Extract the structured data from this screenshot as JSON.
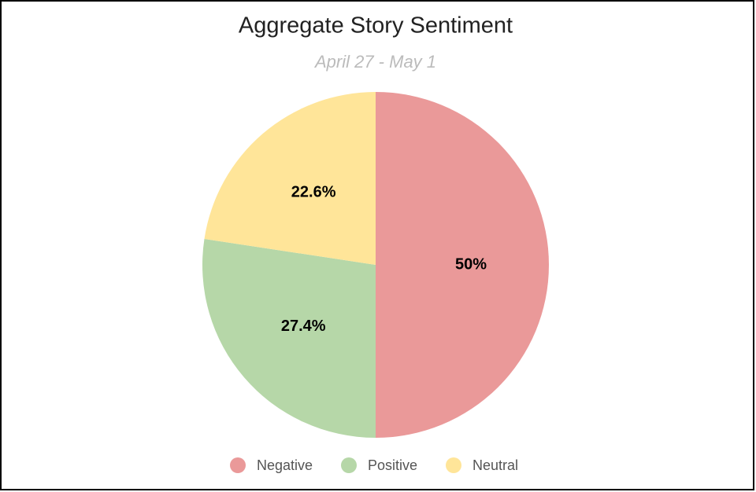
{
  "chart_data": {
    "type": "pie",
    "title": "Aggregate Story Sentiment",
    "subtitle": "April 27 - May 1",
    "categories": [
      "Negative",
      "Positive",
      "Neutral"
    ],
    "values": [
      50,
      27.4,
      22.6
    ],
    "value_labels": [
      "50%",
      "27.4%",
      "22.6%"
    ],
    "colors": [
      "#ea9999",
      "#b6d7a8",
      "#ffe599"
    ],
    "legend": "bottom"
  }
}
